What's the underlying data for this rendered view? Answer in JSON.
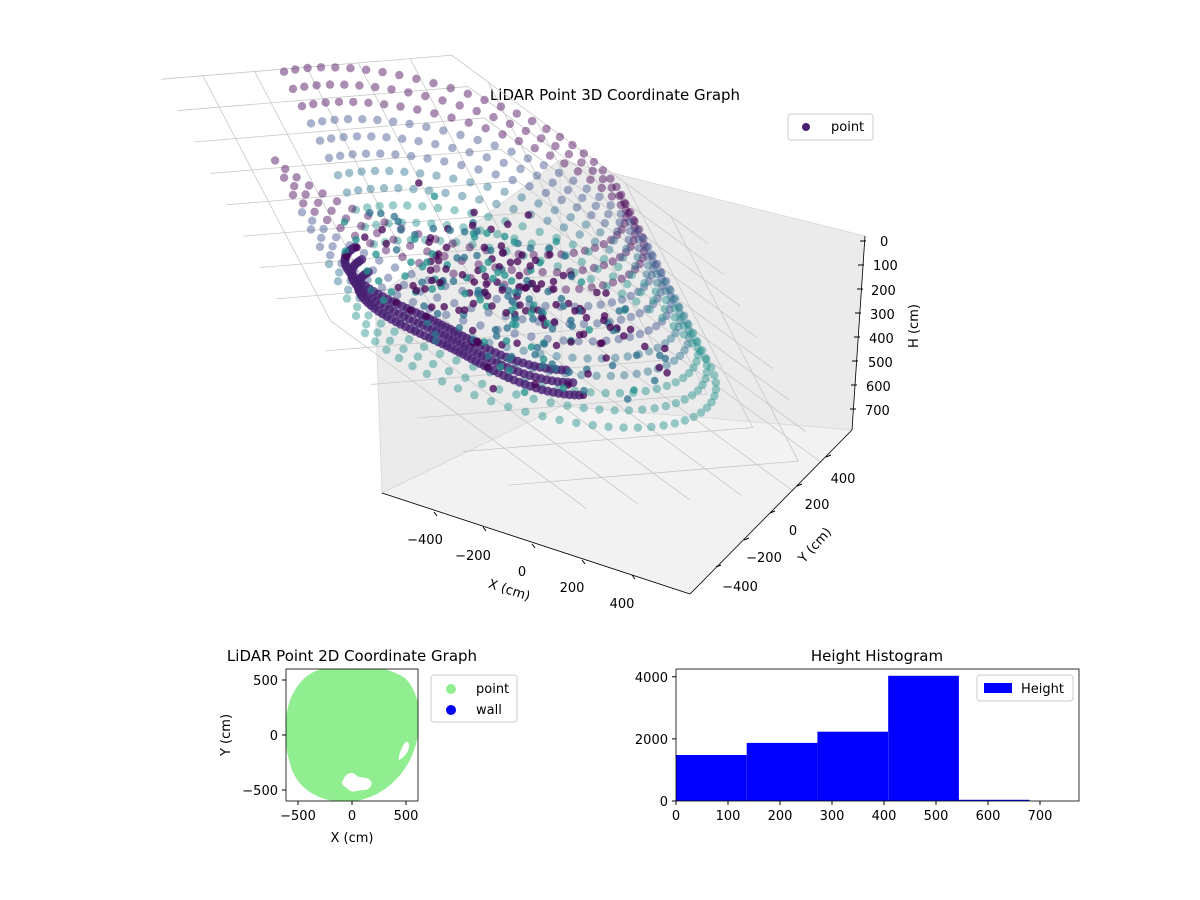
{
  "chart_data": [
    {
      "type": "scatter3d",
      "title": "LiDAR Point 3D Coordinate Graph",
      "xlabel": "X (cm)",
      "ylabel": "Y (cm)",
      "zlabel": "H (cm)",
      "xticks": [
        "−400",
        "−200",
        "0",
        "200",
        "400"
      ],
      "yticks": [
        "400",
        "200",
        "0",
        "−200",
        "−400"
      ],
      "zticks": [
        "0",
        "100",
        "200",
        "300",
        "400",
        "500",
        "600",
        "700"
      ],
      "xlim": [
        -560,
        560
      ],
      "ylim": [
        -560,
        560
      ],
      "zlim": [
        0,
        780
      ],
      "zinverted": true,
      "grid": true,
      "legend": {
        "position": "top-right",
        "entries": [
          {
            "label": "point",
            "color": "#482173"
          }
        ]
      },
      "colormap": [
        "#3b528b",
        "#2c728e",
        "#21918c",
        "#482173",
        "#440154"
      ],
      "description_series": "ring of wall points at radius ~560 cm spanning heights 0-550 cm, plus interior clutter points"
    },
    {
      "type": "scatter",
      "title": "LiDAR Point 2D Coordinate Graph",
      "xlabel": "X (cm)",
      "ylabel": "Y (cm)",
      "xticks": [
        "−500",
        "0",
        "500"
      ],
      "yticks": [
        "500",
        "0",
        "−500"
      ],
      "xlim": [
        -620,
        620
      ],
      "ylim": [
        -620,
        620
      ],
      "legend": {
        "position": "outside-right",
        "entries": [
          {
            "label": "point",
            "color": "#90ee90"
          },
          {
            "label": "wall",
            "color": "#0000ff"
          }
        ]
      },
      "series": [
        {
          "name": "point",
          "color": "#90ee90"
        },
        {
          "name": "wall",
          "color": "#0000ff"
        }
      ]
    },
    {
      "type": "bar",
      "title": "Height Histogram",
      "xticks": [
        "0",
        "100",
        "200",
        "300",
        "400",
        "500",
        "600",
        "700"
      ],
      "yticks": [
        "0",
        "2000",
        "4000"
      ],
      "xlim": [
        0,
        775
      ],
      "ylim": [
        0,
        4250
      ],
      "bin_edges": [
        0,
        136,
        272,
        408,
        544,
        680,
        816
      ],
      "values": [
        1480,
        1870,
        2230,
        4030,
        40,
        0
      ],
      "legend": {
        "position": "top-right",
        "entries": [
          {
            "label": "Height",
            "color": "#0000ff"
          }
        ]
      },
      "series": [
        {
          "name": "Height",
          "color": "#0000ff"
        }
      ]
    }
  ]
}
